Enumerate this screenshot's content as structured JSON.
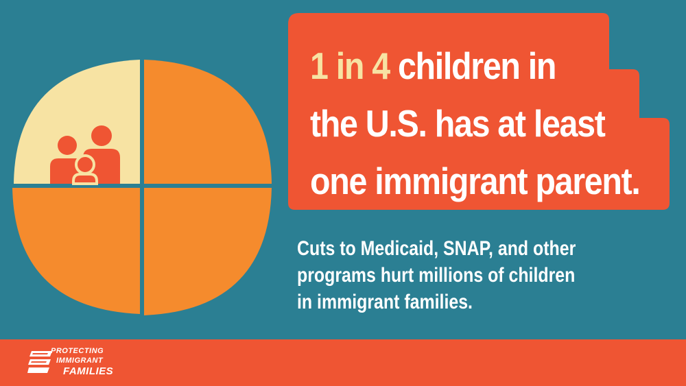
{
  "colors": {
    "background": "#2b7f93",
    "accent_red": "#ef5533",
    "accent_orange": "#f58b2d",
    "cream": "#f7e3a3",
    "white": "#ffffff"
  },
  "headline": {
    "highlight": "1 in 4",
    "line1_rest": " children in",
    "line2": "the U.S. has at least",
    "line3": "one immigrant parent."
  },
  "body": {
    "line1": "Cuts to Medicaid, SNAP, and other",
    "line2": "programs hurt millions of children",
    "line3": "in immigrant families."
  },
  "logo": {
    "line1": "PROTECTING",
    "line2": "IMMIGRANT",
    "line3": "FAMILIES"
  },
  "icons": {
    "pie": "quarter-pie-icon",
    "family": "family-icon",
    "logo_mark": "stacked-bars-logo-icon"
  }
}
